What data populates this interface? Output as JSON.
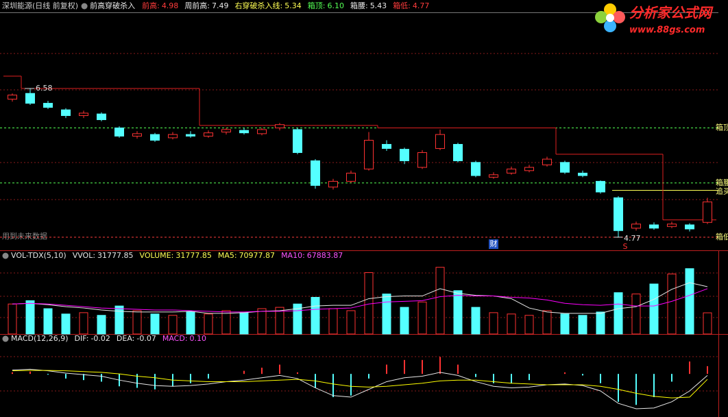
{
  "chart_data": [
    {
      "type": "candlestick",
      "title": "深圳能源(日线 前复权)",
      "indicator": "前高穿破杀入",
      "readouts": [
        {
          "name": "前高:",
          "value": 4.98,
          "color": "#ff3c3c"
        },
        {
          "name": "周前高:",
          "value": 7.49,
          "color": "#e8e8e8"
        },
        {
          "name": "右穿破杀入线:",
          "value": 5.34,
          "color": "#ffff54",
          "axis_label": "追买",
          "line": "solid"
        },
        {
          "name": "箱顶:",
          "value": {
            "value": 6.1,
            "label": "6.10"
          },
          "color": "#54ff54",
          "axis_label": "箱顶",
          "line": "dashed"
        },
        {
          "name": "箱腰:",
          "value": 5.43,
          "color": "#e8e8e8",
          "axis_label": "箱腰",
          "line": "dashed",
          "line_color": "#54ff54"
        },
        {
          "name": "箱低:",
          "value": 4.77,
          "color": "#ff3c3c",
          "axis_label": "箱低",
          "line": "dashed"
        }
      ],
      "note": "用到未来数据",
      "markers": [
        "财",
        "S"
      ],
      "up_color": "#ff3232",
      "down_color": "#54ffff",
      "step_color": "#e02020",
      "ylim": [
        4.61,
        7.49
      ],
      "ohlc": [
        [
          6.45,
          6.52,
          6.42,
          6.5
        ],
        [
          6.52,
          6.58,
          6.38,
          6.4
        ],
        [
          6.4,
          6.43,
          6.33,
          6.35
        ],
        [
          6.32,
          6.34,
          6.22,
          6.25
        ],
        [
          6.25,
          6.31,
          6.22,
          6.28
        ],
        [
          6.27,
          6.29,
          6.18,
          6.2
        ],
        [
          6.1,
          6.12,
          5.98,
          6.0
        ],
        [
          6.0,
          6.06,
          5.97,
          6.03
        ],
        [
          6.02,
          6.04,
          5.93,
          5.95
        ],
        [
          5.98,
          6.05,
          5.96,
          6.02
        ],
        [
          6.02,
          6.06,
          5.98,
          6.0
        ],
        [
          6.0,
          6.07,
          5.98,
          6.04
        ],
        [
          6.05,
          6.1,
          6.02,
          6.08
        ],
        [
          6.07,
          6.1,
          6.02,
          6.04
        ],
        [
          6.03,
          6.1,
          6.01,
          6.08
        ],
        [
          6.1,
          6.16,
          6.07,
          6.14
        ],
        [
          6.08,
          6.1,
          5.78,
          5.8
        ],
        [
          5.7,
          5.72,
          5.36,
          5.4
        ],
        [
          5.38,
          5.48,
          5.35,
          5.45
        ],
        [
          5.45,
          5.58,
          5.43,
          5.55
        ],
        [
          5.6,
          6.05,
          5.58,
          5.95
        ],
        [
          5.9,
          5.95,
          5.82,
          5.85
        ],
        [
          5.84,
          5.86,
          5.66,
          5.7
        ],
        [
          5.62,
          5.83,
          5.6,
          5.8
        ],
        [
          5.85,
          6.08,
          5.83,
          6.02
        ],
        [
          5.9,
          5.92,
          5.68,
          5.7
        ],
        [
          5.68,
          5.7,
          5.5,
          5.52
        ],
        [
          5.5,
          5.56,
          5.48,
          5.53
        ],
        [
          5.55,
          5.63,
          5.53,
          5.6
        ],
        [
          5.58,
          5.65,
          5.56,
          5.62
        ],
        [
          5.65,
          5.75,
          5.63,
          5.72
        ],
        [
          5.68,
          5.7,
          5.54,
          5.56
        ],
        [
          5.55,
          5.58,
          5.5,
          5.52
        ],
        [
          5.45,
          5.46,
          5.3,
          5.32
        ],
        [
          5.25,
          5.27,
          4.77,
          4.85
        ],
        [
          4.88,
          4.96,
          4.85,
          4.93
        ],
        [
          4.92,
          4.95,
          4.86,
          4.88
        ],
        [
          4.9,
          4.96,
          4.88,
          4.93
        ],
        [
          4.92,
          4.94,
          4.84,
          4.87
        ],
        [
          4.95,
          5.25,
          4.93,
          5.2
        ]
      ],
      "prev_high": [
        6.73,
        6.58,
        6.58,
        6.58,
        6.58,
        6.58,
        6.58,
        6.58,
        6.58,
        6.58,
        6.58,
        6.13,
        6.13,
        6.13,
        6.13,
        6.13,
        6.13,
        6.13,
        6.13,
        6.13,
        6.13,
        6.1,
        6.1,
        6.1,
        6.1,
        6.1,
        6.1,
        6.1,
        6.1,
        6.1,
        6.1,
        5.78,
        5.78,
        5.78,
        5.78,
        5.78,
        5.78,
        4.98,
        4.98,
        4.98
      ]
    },
    {
      "type": "volume",
      "title": "VOL-TDX(5,10)",
      "readouts": [
        {
          "name": "VVOL:",
          "value": 31777.85,
          "color": "#e8e8e8"
        },
        {
          "name": "VOLUME:",
          "value": 31777.85,
          "color": "#ffff54"
        },
        {
          "name": "MA5:",
          "value": 70977.87,
          "color": "#ffff54"
        },
        {
          "name": "MA10:",
          "value": 67883.87,
          "color": "#ff54ff"
        }
      ],
      "ylim": [
        0,
        110000
      ],
      "values": [
        45000,
        50000,
        38000,
        30000,
        32000,
        28000,
        42000,
        35000,
        30000,
        28000,
        33000,
        30000,
        35000,
        32000,
        38000,
        40000,
        45000,
        55000,
        38000,
        35000,
        92000,
        60000,
        40000,
        48000,
        100000,
        65000,
        40000,
        32000,
        30000,
        28000,
        35000,
        30000,
        28000,
        33000,
        62000,
        60000,
        75000,
        90000,
        98000,
        31777.85
      ],
      "series": [
        {
          "name": "MA5",
          "color": "#e8e8e8",
          "values": [
            45000,
            46000,
            44000,
            41000,
            39000,
            36000,
            34000,
            33000,
            33000,
            33000,
            34000,
            31000,
            31000,
            32000,
            34000,
            35000,
            38000,
            42000,
            43000,
            43000,
            53000,
            56000,
            57000,
            57000,
            68000,
            61000,
            58000,
            57000,
            53000,
            39000,
            33000,
            31000,
            31000,
            31000,
            38000,
            41000,
            52000,
            67000,
            77000,
            70977.87
          ]
        },
        {
          "name": "MA10",
          "color": "#ff00ff",
          "values": [
            45000,
            46000,
            45000,
            43000,
            41000,
            39000,
            38000,
            37000,
            36000,
            36000,
            35000,
            34000,
            33000,
            33000,
            34000,
            34000,
            35000,
            37000,
            38000,
            39000,
            45000,
            48000,
            49000,
            50000,
            56000,
            58000,
            57000,
            57000,
            55000,
            54000,
            51000,
            46000,
            44000,
            43000,
            45000,
            42000,
            42000,
            49000,
            58000,
            67883.87
          ]
        }
      ]
    },
    {
      "type": "macd",
      "title": "MACD(12,26,9)",
      "readouts": [
        {
          "name": "DIF:",
          "value": -0.02,
          "color": "#e8e8e8"
        },
        {
          "name": "DEA:",
          "value": -0.07,
          "color": "#e8e8e8"
        },
        {
          "name": "MACD:",
          "value": {
            "value": 0.1,
            "label": "0.10"
          },
          "color": "#ff54ff"
        }
      ],
      "ylim": [
        -0.53,
        0.4
      ],
      "values": [
        0.02,
        0.03,
        -0.01,
        -0.06,
        -0.08,
        -0.1,
        -0.16,
        -0.18,
        -0.2,
        -0.16,
        -0.12,
        -0.06,
        0.0,
        0.04,
        0.08,
        0.12,
        0.02,
        -0.18,
        -0.3,
        -0.28,
        -0.06,
        0.12,
        0.18,
        0.18,
        0.22,
        0.12,
        -0.04,
        -0.12,
        -0.12,
        -0.08,
        0.0,
        0.02,
        -0.02,
        -0.12,
        -0.36,
        -0.4,
        -0.3,
        -0.1,
        0.16,
        0.1
      ],
      "series": [
        {
          "name": "DIF",
          "color": "#e8e8e8",
          "values": [
            0.05,
            0.06,
            0.04,
            0.01,
            -0.01,
            -0.03,
            -0.08,
            -0.12,
            -0.15,
            -0.16,
            -0.15,
            -0.13,
            -0.1,
            -0.08,
            -0.05,
            -0.02,
            -0.06,
            -0.18,
            -0.28,
            -0.3,
            -0.2,
            -0.1,
            -0.05,
            -0.03,
            0.02,
            -0.02,
            -0.1,
            -0.16,
            -0.18,
            -0.17,
            -0.14,
            -0.13,
            -0.15,
            -0.22,
            -0.38,
            -0.45,
            -0.44,
            -0.36,
            -0.22,
            -0.02
          ]
        },
        {
          "name": "DEA",
          "color": "#ffff00",
          "values": [
            0.04,
            0.045,
            0.045,
            0.04,
            0.03,
            0.02,
            0.0,
            -0.03,
            -0.05,
            -0.08,
            -0.09,
            -0.1,
            -0.1,
            -0.1,
            -0.09,
            -0.08,
            -0.07,
            -0.09,
            -0.13,
            -0.16,
            -0.17,
            -0.16,
            -0.14,
            -0.12,
            -0.09,
            -0.08,
            -0.08,
            -0.1,
            -0.12,
            -0.13,
            -0.14,
            -0.14,
            -0.14,
            -0.16,
            -0.2,
            -0.25,
            -0.29,
            -0.31,
            -0.3,
            -0.07
          ]
        }
      ],
      "up_color": "#ff3232",
      "down_color": "#54ffff"
    }
  ],
  "logo": {
    "title": "分析家公式网",
    "url": "www.88gs.com"
  }
}
